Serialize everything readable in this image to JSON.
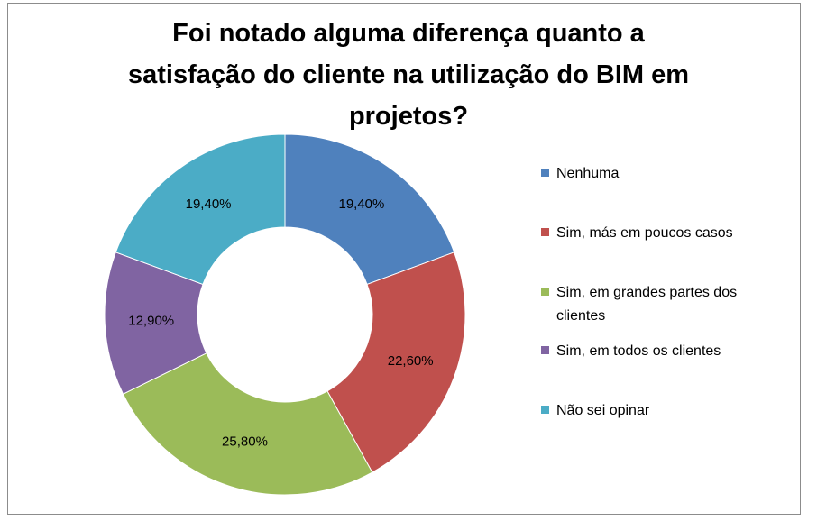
{
  "title_lines": [
    "Foi notado alguma diferença quanto a",
    "satisfação do cliente na utilização do BIM em",
    "projetos?"
  ],
  "chart_data": {
    "type": "pie",
    "variant": "donut",
    "title": "Foi notado alguma diferença quanto a satisfação do cliente na utilização do BIM em projetos?",
    "categories": [
      "Nenhuma",
      "Sim, más em poucos casos",
      "Sim, em grandes partes dos clientes",
      "Sim, em todos os clientes",
      "Não sei opinar"
    ],
    "values": [
      19.4,
      22.6,
      25.8,
      12.9,
      19.4
    ],
    "labels": [
      "19,40%",
      "22,60%",
      "25,80%",
      "12,90%",
      "19,40%"
    ],
    "colors": [
      "#4f81bd",
      "#c0504d",
      "#9bbb59",
      "#8064a2",
      "#4bacc6"
    ],
    "legend": "right"
  },
  "legend_items": [
    {
      "lines": [
        "Nenhuma"
      ]
    },
    {
      "lines": [
        "Sim, más em poucos casos"
      ]
    },
    {
      "lines": [
        "Sim, em grandes partes dos",
        "clientes"
      ]
    },
    {
      "lines": [
        "Sim, em todos os clientes"
      ]
    },
    {
      "lines": [
        "Não sei opinar"
      ]
    }
  ]
}
